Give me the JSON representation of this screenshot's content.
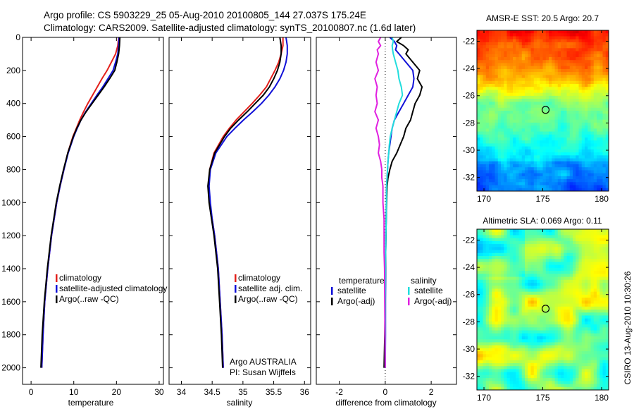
{
  "figure": {
    "title_line1": "Argo profile: CS 5903229_25 05-Aug-2010 20100805_144 27.037S 175.24E",
    "title_line2": "Climatology: CARS2009. Satellite-adjusted climatology: synTS_20100807.nc (1.6d later)",
    "side_stamp": "CSIRO 13-Aug-2010 10:30:26",
    "note_line1": "Argo AUSTRALIA",
    "note_line2": "PI: Susan Wijffels"
  },
  "colors": {
    "climatology": "#e3201b",
    "satellite": "#1010d8",
    "argo": "#000000",
    "sal_satellite": "#22dddd",
    "sal_argo": "#e020e0"
  },
  "chart_data": [
    {
      "type": "line",
      "id": "temperature",
      "xlabel": "temperature",
      "ylabel": "",
      "xlim": [
        -2,
        31
      ],
      "ylim": [
        2100,
        0
      ],
      "xticks": [
        0,
        10,
        20,
        30
      ],
      "yticks": [
        0,
        200,
        400,
        600,
        800,
        1000,
        1200,
        1400,
        1600,
        1800,
        2000
      ],
      "legend": {
        "placement": "lower-center",
        "entries": [
          "climatology",
          "satellite-adjusted climatology",
          "Argo(..raw -QC)"
        ]
      },
      "depth": [
        0,
        50,
        100,
        150,
        200,
        250,
        300,
        350,
        400,
        450,
        500,
        550,
        600,
        700,
        800,
        900,
        1000,
        1200,
        1400,
        1600,
        1800,
        2000
      ],
      "series": [
        {
          "name": "climatology",
          "color_key": "climatology",
          "values": [
            20.5,
            20.3,
            19.8,
            18.8,
            17.8,
            16.6,
            15.5,
            14.4,
            13.3,
            12.3,
            11.4,
            10.6,
            9.8,
            8.6,
            7.7,
            6.8,
            6.0,
            4.8,
            3.9,
            3.2,
            2.8,
            2.5
          ]
        },
        {
          "name": "satellite-adjusted climatology",
          "color_key": "satellite",
          "values": [
            20.6,
            20.5,
            20.3,
            19.8,
            19.2,
            18.0,
            16.8,
            15.4,
            14.1,
            12.8,
            11.7,
            10.8,
            10.0,
            8.7,
            7.7,
            6.8,
            6.0,
            4.8,
            3.9,
            3.2,
            2.8,
            2.5
          ]
        },
        {
          "name": "Argo(..raw -QC)",
          "color_key": "argo",
          "values": [
            20.8,
            20.7,
            20.5,
            20.1,
            19.6,
            18.4,
            17.1,
            15.7,
            14.3,
            12.9,
            11.7,
            10.7,
            9.9,
            8.6,
            7.6,
            6.7,
            5.9,
            4.7,
            3.8,
            3.1,
            2.6,
            2.3
          ]
        }
      ]
    },
    {
      "type": "line",
      "id": "salinity",
      "xlabel": "salinity",
      "ylabel": "",
      "xlim": [
        33.8,
        36.1
      ],
      "ylim": [
        2100,
        0
      ],
      "xticks": [
        34,
        34.5,
        35,
        35.5,
        36
      ],
      "legend": {
        "placement": "lower-center",
        "entries": [
          "climatology",
          "satellite adj. clim.",
          "Argo(..raw -QC)"
        ]
      },
      "depth": [
        0,
        50,
        100,
        150,
        200,
        250,
        300,
        350,
        400,
        450,
        500,
        550,
        600,
        700,
        800,
        900,
        1000,
        1100,
        1200,
        1400,
        1600,
        1800,
        2000
      ],
      "series": [
        {
          "name": "climatology",
          "color_key": "climatology",
          "values": [
            35.65,
            35.65,
            35.62,
            35.58,
            35.52,
            35.45,
            35.38,
            35.27,
            35.15,
            35.02,
            34.89,
            34.78,
            34.68,
            34.53,
            34.46,
            34.44,
            34.46,
            34.5,
            34.54,
            34.6,
            34.63,
            34.66,
            34.68
          ]
        },
        {
          "name": "satellite adj. clim.",
          "color_key": "satellite",
          "values": [
            35.7,
            35.72,
            35.72,
            35.7,
            35.66,
            35.6,
            35.52,
            35.42,
            35.3,
            35.16,
            35.01,
            34.87,
            34.74,
            34.56,
            34.47,
            34.45,
            34.47,
            34.5,
            34.54,
            34.6,
            34.63,
            34.66,
            34.68
          ]
        },
        {
          "name": "Argo(..raw -QC)",
          "color_key": "argo",
          "values": [
            35.6,
            35.62,
            35.62,
            35.6,
            35.56,
            35.5,
            35.43,
            35.33,
            35.2,
            35.07,
            34.93,
            34.8,
            34.7,
            34.54,
            34.46,
            34.43,
            34.45,
            34.49,
            34.53,
            34.59,
            34.62,
            34.65,
            34.67
          ]
        }
      ]
    },
    {
      "type": "line",
      "id": "difference",
      "xlabel": "difference from climatology",
      "ylabel": "",
      "xlim": [
        -3,
        3.1
      ],
      "ylim": [
        2100,
        0
      ],
      "xticks": [
        -2,
        0,
        2
      ],
      "legend": {
        "placement": "lower-center",
        "groups": [
          {
            "heading": "temperature",
            "entries": [
              "satellite",
              "Argo(-adj)"
            ]
          },
          {
            "heading": "salinity",
            "entries": [
              "satellite",
              "Argo(-adj)"
            ]
          }
        ]
      },
      "depth": [
        0,
        25,
        50,
        75,
        100,
        150,
        200,
        250,
        300,
        350,
        400,
        450,
        500,
        550,
        600,
        650,
        700,
        750,
        800,
        850,
        900,
        1000,
        1100,
        1200,
        1300,
        1400,
        1600,
        1800,
        2000
      ],
      "series": [
        {
          "name": "temperature satellite",
          "color_key": "satellite",
          "values": [
            0.2,
            0.4,
            0.5,
            0.45,
            0.6,
            0.9,
            1.2,
            1.25,
            1.2,
            1.0,
            0.8,
            0.6,
            0.4,
            0.3,
            0.25,
            0.2,
            0.15,
            0.12,
            0.1,
            0.08,
            0.06,
            0.05,
            0.04,
            0.03,
            0.02,
            0.02,
            0.01,
            0.01,
            0.0
          ]
        },
        {
          "name": "temperature Argo(-adj)",
          "color_key": "argo",
          "values": [
            0.7,
            0.5,
            0.8,
            1.0,
            0.9,
            1.2,
            1.5,
            1.4,
            1.6,
            1.5,
            1.3,
            1.2,
            1.1,
            0.9,
            0.8,
            0.65,
            0.5,
            0.3,
            0.2,
            0.12,
            0.08,
            0.06,
            0.04,
            0.03,
            0.02,
            0.01,
            0.0,
            -0.02,
            -0.05
          ]
        },
        {
          "name": "salinity satellite",
          "color_key": "sal_satellite",
          "values": [
            0.3,
            0.35,
            0.3,
            0.32,
            0.35,
            0.45,
            0.55,
            0.6,
            0.7,
            0.75,
            0.6,
            0.5,
            0.4,
            0.3,
            0.22,
            0.18,
            0.15,
            0.12,
            0.1,
            0.08,
            0.06,
            0.05,
            0.04,
            0.03,
            0.02,
            0.01,
            0.0,
            0.0,
            0.0
          ]
        },
        {
          "name": "salinity Argo(-adj)",
          "color_key": "sal_argo",
          "values": [
            -0.2,
            -0.3,
            -0.2,
            -0.35,
            -0.3,
            -0.4,
            -0.3,
            -0.45,
            -0.35,
            -0.4,
            -0.35,
            -0.45,
            -0.3,
            -0.4,
            -0.3,
            -0.25,
            -0.3,
            -0.2,
            -0.15,
            -0.15,
            -0.1,
            -0.1,
            -0.05,
            -0.05,
            -0.05,
            -0.03,
            -0.02,
            -0.01,
            0.0
          ]
        }
      ]
    },
    {
      "type": "heatmap",
      "id": "sst",
      "title": "AMSR-E SST: 20.5 Argo: 20.7",
      "xlim": [
        169.4,
        180.6
      ],
      "ylim": [
        -33.0,
        -21.2
      ],
      "xticks": [
        170,
        175,
        180
      ],
      "yticks": [
        -22,
        -24,
        -26,
        -28,
        -30,
        -32
      ],
      "marker": {
        "lon": 175.24,
        "lat": -27.037
      },
      "scale": [
        20.5,
        22.5,
        24.5
      ]
    },
    {
      "type": "heatmap",
      "id": "sla",
      "title": "Altimetric SLA: 0.069 Argo: 0.11",
      "xlim": [
        169.4,
        180.6
      ],
      "ylim": [
        -33.0,
        -21.2
      ],
      "xticks": [
        170,
        175,
        180
      ],
      "yticks": [
        -22,
        -24,
        -26,
        -28,
        -30,
        -32
      ],
      "marker": {
        "lon": 175.24,
        "lat": -27.037
      }
    }
  ]
}
